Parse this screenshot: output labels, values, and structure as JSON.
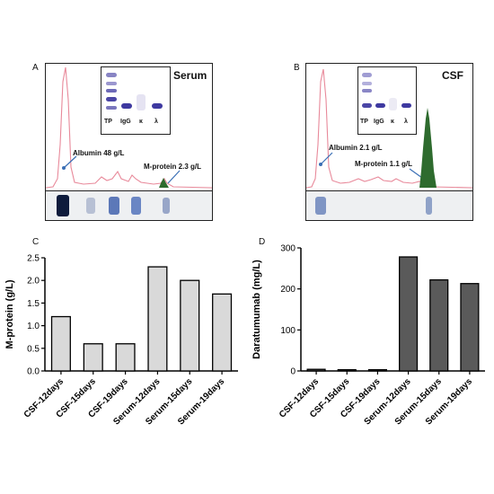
{
  "panels": {
    "A": {
      "letter": "A",
      "sample": "Serum",
      "inset_lanes": [
        "TP",
        "IgG",
        "κ",
        "λ"
      ],
      "albumin_label": "Albumin 48 g/L",
      "mprotein_label": "M-protein 2.3 g/L"
    },
    "B": {
      "letter": "B",
      "sample": "CSF",
      "inset_lanes": [
        "TP",
        "IgG",
        "κ",
        "λ"
      ],
      "albumin_label": "Albumin 2.1 g/L",
      "mprotein_label": "M-protein 1.1 g/L"
    },
    "C": {
      "letter": "C"
    },
    "D": {
      "letter": "D"
    }
  },
  "colors": {
    "trace": "#e8899a",
    "mspike": "#2e6b2e",
    "arrow": "#3a6fb5",
    "bar_light": "#d9d9d9",
    "bar_dark": "#5a5a5a",
    "band_blue": "#3b5fae"
  },
  "chart_data": [
    {
      "type": "bar",
      "categories": [
        "CSF-12days",
        "CSF-15days",
        "CSF-19days",
        "Serum-12days",
        "Serum-15days",
        "Serum-19days"
      ],
      "values": [
        1.2,
        0.6,
        0.6,
        2.3,
        2.0,
        1.7
      ],
      "ylabel": "M-protein (g/L)",
      "ylim": [
        0,
        2.5
      ],
      "yticks": [
        "0.0",
        "0.5",
        "1.0",
        "1.5",
        "2.0",
        "2.5"
      ],
      "grid": false
    },
    {
      "type": "bar",
      "categories": [
        "CSF-12days",
        "CSF-15days",
        "CSF-19days",
        "Serum-12days",
        "Serum-15days",
        "Serum-19days"
      ],
      "values": [
        4,
        3,
        3,
        278,
        222,
        213
      ],
      "ylabel": "Daratumumab (mg/L)",
      "ylim": [
        0,
        300
      ],
      "yticks": [
        "0",
        "100",
        "200",
        "300"
      ],
      "grid": false
    }
  ]
}
